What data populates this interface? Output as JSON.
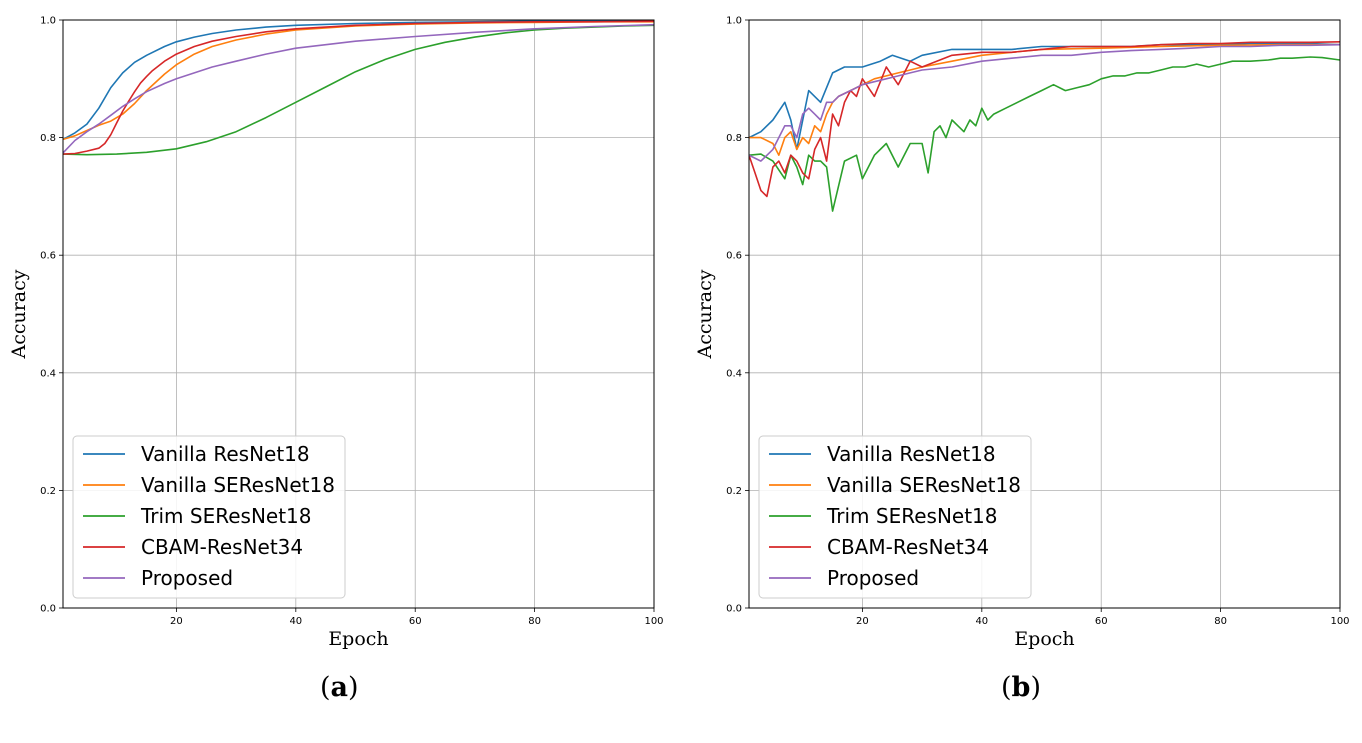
{
  "chart_data": [
    {
      "type": "line",
      "panel_label": "a",
      "xlabel": "Epoch",
      "ylabel": "Accuracy",
      "xlim": [
        1,
        100
      ],
      "ylim": [
        0.0,
        1.0
      ],
      "xticks": [
        "20",
        "40",
        "60",
        "80",
        "100"
      ],
      "yticks": [
        "0.0",
        "0.2",
        "0.4",
        "0.6",
        "0.8",
        "1.0"
      ],
      "grid": true,
      "legend_position": "lower-left",
      "series": [
        {
          "name": "Vanilla ResNet18",
          "color": "#1f77b4",
          "x": [
            1,
            3,
            5,
            7,
            9,
            11,
            13,
            15,
            18,
            20,
            23,
            26,
            30,
            35,
            40,
            50,
            60,
            70,
            80,
            90,
            100
          ],
          "y": [
            0.797,
            0.808,
            0.823,
            0.85,
            0.885,
            0.91,
            0.928,
            0.94,
            0.955,
            0.963,
            0.971,
            0.977,
            0.983,
            0.988,
            0.991,
            0.994,
            0.996,
            0.997,
            0.998,
            0.998,
            0.998
          ]
        },
        {
          "name": "Vanilla SEResNet18",
          "color": "#ff7f0e",
          "x": [
            1,
            3,
            5,
            7,
            9,
            11,
            13,
            15,
            18,
            20,
            23,
            26,
            30,
            35,
            40,
            50,
            60,
            70,
            80,
            90,
            100
          ],
          "y": [
            0.797,
            0.803,
            0.812,
            0.821,
            0.828,
            0.84,
            0.858,
            0.88,
            0.908,
            0.924,
            0.942,
            0.955,
            0.966,
            0.976,
            0.983,
            0.99,
            0.993,
            0.995,
            0.996,
            0.997,
            0.997
          ]
        },
        {
          "name": "Trim SEResNet18",
          "color": "#2ca02c",
          "x": [
            1,
            5,
            10,
            15,
            20,
            25,
            30,
            35,
            40,
            45,
            50,
            55,
            60,
            65,
            70,
            75,
            80,
            85,
            90,
            95,
            100
          ],
          "y": [
            0.772,
            0.771,
            0.772,
            0.775,
            0.781,
            0.793,
            0.81,
            0.834,
            0.86,
            0.886,
            0.912,
            0.933,
            0.95,
            0.962,
            0.971,
            0.978,
            0.983,
            0.986,
            0.988,
            0.99,
            0.991
          ]
        },
        {
          "name": "CBAM-ResNet34",
          "color": "#d62728",
          "x": [
            1,
            3,
            5,
            7,
            8,
            9,
            10,
            11,
            12,
            13,
            14,
            15,
            16,
            18,
            20,
            23,
            26,
            30,
            35,
            40,
            50,
            60,
            70,
            80,
            90,
            100
          ],
          "y": [
            0.772,
            0.773,
            0.777,
            0.782,
            0.79,
            0.805,
            0.825,
            0.845,
            0.862,
            0.878,
            0.893,
            0.904,
            0.914,
            0.93,
            0.942,
            0.955,
            0.964,
            0.972,
            0.98,
            0.985,
            0.991,
            0.994,
            0.996,
            0.997,
            0.997,
            0.998
          ]
        },
        {
          "name": "Proposed",
          "color": "#9467bd",
          "x": [
            1,
            3,
            5,
            7,
            9,
            11,
            13,
            15,
            18,
            20,
            23,
            26,
            30,
            35,
            40,
            45,
            50,
            60,
            70,
            80,
            90,
            100
          ],
          "y": [
            0.774,
            0.795,
            0.81,
            0.823,
            0.838,
            0.853,
            0.866,
            0.878,
            0.892,
            0.9,
            0.91,
            0.92,
            0.93,
            0.942,
            0.952,
            0.958,
            0.964,
            0.972,
            0.979,
            0.985,
            0.989,
            0.992
          ]
        }
      ]
    },
    {
      "type": "line",
      "panel_label": "b",
      "xlabel": "Epoch",
      "ylabel": "Accuracy",
      "xlim": [
        1,
        100
      ],
      "ylim": [
        0.0,
        1.0
      ],
      "xticks": [
        "20",
        "40",
        "60",
        "80",
        "100"
      ],
      "yticks": [
        "0.0",
        "0.2",
        "0.4",
        "0.6",
        "0.8",
        "1.0"
      ],
      "grid": true,
      "legend_position": "lower-left",
      "series": [
        {
          "name": "Vanilla ResNet18",
          "color": "#1f77b4",
          "x": [
            1,
            3,
            5,
            7,
            8,
            9,
            11,
            13,
            15,
            17,
            20,
            23,
            25,
            28,
            30,
            35,
            40,
            45,
            50,
            55,
            60,
            65,
            70,
            75,
            80,
            85,
            90,
            95,
            100
          ],
          "y": [
            0.8,
            0.81,
            0.83,
            0.86,
            0.83,
            0.78,
            0.88,
            0.86,
            0.91,
            0.92,
            0.92,
            0.93,
            0.94,
            0.93,
            0.94,
            0.95,
            0.95,
            0.95,
            0.955,
            0.955,
            0.955,
            0.955,
            0.958,
            0.958,
            0.958,
            0.96,
            0.96,
            0.96,
            0.958
          ]
        },
        {
          "name": "Vanilla SEResNet18",
          "color": "#ff7f0e",
          "x": [
            1,
            3,
            5,
            6,
            7,
            8,
            9,
            10,
            11,
            12,
            13,
            14,
            15,
            16,
            18,
            20,
            22,
            24,
            26,
            28,
            30,
            35,
            40,
            45,
            50,
            60,
            70,
            80,
            90,
            100
          ],
          "y": [
            0.8,
            0.8,
            0.79,
            0.77,
            0.8,
            0.81,
            0.78,
            0.8,
            0.79,
            0.82,
            0.81,
            0.84,
            0.86,
            0.87,
            0.88,
            0.89,
            0.9,
            0.905,
            0.91,
            0.915,
            0.92,
            0.93,
            0.94,
            0.945,
            0.95,
            0.952,
            0.955,
            0.957,
            0.958,
            0.958
          ]
        },
        {
          "name": "Trim SEResNet18",
          "color": "#2ca02c",
          "x": [
            1,
            3,
            5,
            7,
            8,
            9,
            10,
            11,
            12,
            13,
            14,
            15,
            17,
            19,
            20,
            22,
            24,
            26,
            28,
            30,
            31,
            32,
            33,
            34,
            35,
            36,
            37,
            38,
            39,
            40,
            41,
            42,
            44,
            46,
            48,
            50,
            52,
            54,
            56,
            58,
            60,
            62,
            64,
            66,
            68,
            70,
            72,
            74,
            76,
            78,
            80,
            82,
            85,
            88,
            90,
            92,
            95,
            97,
            100
          ],
          "y": [
            0.77,
            0.772,
            0.76,
            0.73,
            0.77,
            0.75,
            0.72,
            0.77,
            0.76,
            0.76,
            0.75,
            0.675,
            0.76,
            0.77,
            0.73,
            0.77,
            0.79,
            0.75,
            0.79,
            0.79,
            0.74,
            0.81,
            0.82,
            0.8,
            0.83,
            0.82,
            0.81,
            0.83,
            0.82,
            0.85,
            0.83,
            0.84,
            0.85,
            0.86,
            0.87,
            0.88,
            0.89,
            0.88,
            0.885,
            0.89,
            0.9,
            0.905,
            0.905,
            0.91,
            0.91,
            0.915,
            0.92,
            0.92,
            0.925,
            0.92,
            0.925,
            0.93,
            0.93,
            0.932,
            0.935,
            0.935,
            0.937,
            0.936,
            0.932
          ]
        },
        {
          "name": "CBAM-ResNet34",
          "color": "#d62728",
          "x": [
            1,
            2,
            3,
            4,
            5,
            6,
            7,
            8,
            9,
            10,
            11,
            12,
            13,
            14,
            15,
            16,
            17,
            18,
            19,
            20,
            22,
            24,
            26,
            28,
            30,
            35,
            40,
            45,
            50,
            55,
            60,
            65,
            70,
            75,
            80,
            85,
            90,
            95,
            100
          ],
          "y": [
            0.77,
            0.74,
            0.71,
            0.7,
            0.75,
            0.76,
            0.74,
            0.77,
            0.76,
            0.74,
            0.73,
            0.78,
            0.8,
            0.76,
            0.84,
            0.82,
            0.86,
            0.88,
            0.87,
            0.9,
            0.87,
            0.92,
            0.89,
            0.93,
            0.92,
            0.94,
            0.945,
            0.945,
            0.95,
            0.955,
            0.955,
            0.955,
            0.958,
            0.96,
            0.96,
            0.962,
            0.962,
            0.962,
            0.963
          ]
        },
        {
          "name": "Proposed",
          "color": "#9467bd",
          "x": [
            1,
            3,
            5,
            6,
            7,
            8,
            9,
            10,
            11,
            12,
            13,
            14,
            15,
            16,
            18,
            20,
            22,
            24,
            26,
            28,
            30,
            35,
            40,
            45,
            50,
            55,
            60,
            65,
            70,
            75,
            80,
            85,
            90,
            95,
            100
          ],
          "y": [
            0.77,
            0.76,
            0.78,
            0.8,
            0.82,
            0.82,
            0.8,
            0.84,
            0.85,
            0.84,
            0.83,
            0.86,
            0.86,
            0.87,
            0.88,
            0.89,
            0.895,
            0.9,
            0.905,
            0.91,
            0.915,
            0.92,
            0.93,
            0.935,
            0.94,
            0.94,
            0.945,
            0.948,
            0.95,
            0.952,
            0.955,
            0.955,
            0.957,
            0.957,
            0.958
          ]
        }
      ]
    }
  ]
}
